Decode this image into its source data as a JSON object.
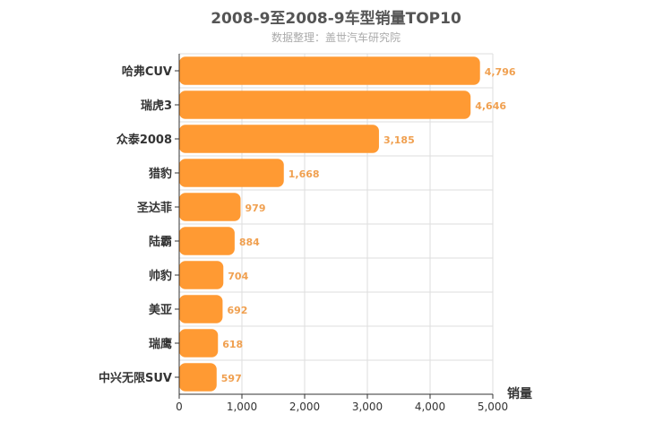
{
  "chart_data": {
    "type": "bar",
    "orientation": "horizontal",
    "title": "2008-9至2008-9车型销量TOP10",
    "subtitle": "数据整理：盖世汽车研究院",
    "xlabel": "销量",
    "ylabel": "",
    "categories": [
      "哈弗CUV",
      "瑞虎3",
      "众泰2008",
      "猎豹",
      "圣达菲",
      "陆霸",
      "帅豹",
      "美亚",
      "瑞鹰",
      "中兴无限SUV"
    ],
    "values": [
      4796,
      4646,
      3185,
      1668,
      979,
      884,
      704,
      692,
      618,
      597
    ],
    "value_labels": [
      "4,796",
      "4,646",
      "3,185",
      "1,668",
      "979",
      "884",
      "704",
      "692",
      "618",
      "597"
    ],
    "xlim": [
      0,
      5000
    ],
    "xticks": [
      0,
      1000,
      2000,
      3000,
      4000,
      5000
    ],
    "xtick_labels": [
      "0",
      "1,000",
      "2,000",
      "3,000",
      "4,000",
      "5,000"
    ],
    "grid": true,
    "bar_color": "#ff9a33",
    "value_label_color": "#f0a050"
  }
}
